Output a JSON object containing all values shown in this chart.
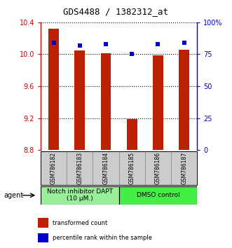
{
  "title": "GDS4488 / 1382312_at",
  "categories": [
    "GSM786182",
    "GSM786183",
    "GSM786184",
    "GSM786185",
    "GSM786186",
    "GSM786187"
  ],
  "red_values": [
    10.32,
    10.05,
    10.01,
    9.19,
    9.99,
    10.06
  ],
  "blue_values": [
    84,
    82,
    83,
    75,
    83,
    84
  ],
  "ylim_left": [
    8.8,
    10.4
  ],
  "ylim_right": [
    0,
    100
  ],
  "yticks_left": [
    8.8,
    9.2,
    9.6,
    10.0,
    10.4
  ],
  "yticks_right": [
    0,
    25,
    50,
    75,
    100
  ],
  "ytick_labels_right": [
    "0",
    "25",
    "50",
    "75",
    "100%"
  ],
  "bar_color": "#bb2200",
  "dot_color": "#0000cc",
  "bar_base": 8.8,
  "group_labels": [
    "Notch inhibitor DAPT\n(10 μM.)",
    "DMSO control"
  ],
  "group_colors": [
    "#99ee99",
    "#44ee44"
  ],
  "group_label_fontsize": 6.5,
  "legend_items": [
    {
      "color": "#bb2200",
      "label": "transformed count"
    },
    {
      "color": "#0000cc",
      "label": "percentile rank within the sample"
    }
  ],
  "agent_label": "agent",
  "background_color": "#ffffff",
  "plot_bg": "#ffffff",
  "left_tick_color": "#cc0000",
  "right_tick_color": "#0000cc",
  "label_bg": "#cccccc"
}
